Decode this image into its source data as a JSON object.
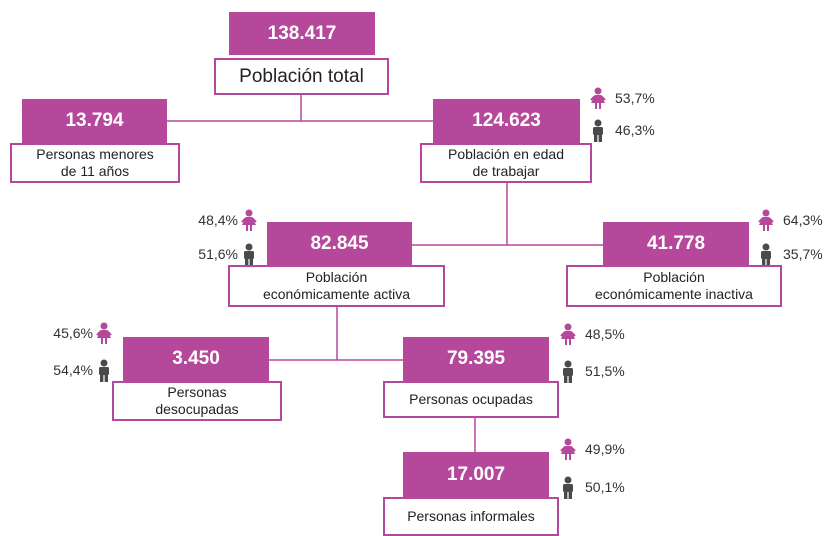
{
  "nodes": [
    {
      "value": "138.417",
      "label": [
        "Población total"
      ]
    },
    {
      "value": "13.794",
      "label": [
        "Personas menores",
        "de 11 años"
      ]
    },
    {
      "value": "124.623",
      "label": [
        "Población en edad",
        "de trabajar"
      ],
      "female": "53,7%",
      "male": "46,3%"
    },
    {
      "value": "82.845",
      "label": [
        "Población",
        "económicamente activa"
      ],
      "female": "48,4%",
      "male": "51,6%"
    },
    {
      "value": "41.778",
      "label": [
        "Población",
        "económicamente inactiva"
      ],
      "female": "64,3%",
      "male": "35,7%"
    },
    {
      "value": "3.450",
      "label": [
        "Personas",
        "desocupadas"
      ],
      "female": "45,6%",
      "male": "54,4%"
    },
    {
      "value": "79.395",
      "label": [
        "Personas ocupadas"
      ],
      "female": "48,5%",
      "male": "51,5%"
    },
    {
      "value": "17.007",
      "label": [
        "Personas informales"
      ],
      "female": "49,9%",
      "male": "50,1%"
    }
  ]
}
